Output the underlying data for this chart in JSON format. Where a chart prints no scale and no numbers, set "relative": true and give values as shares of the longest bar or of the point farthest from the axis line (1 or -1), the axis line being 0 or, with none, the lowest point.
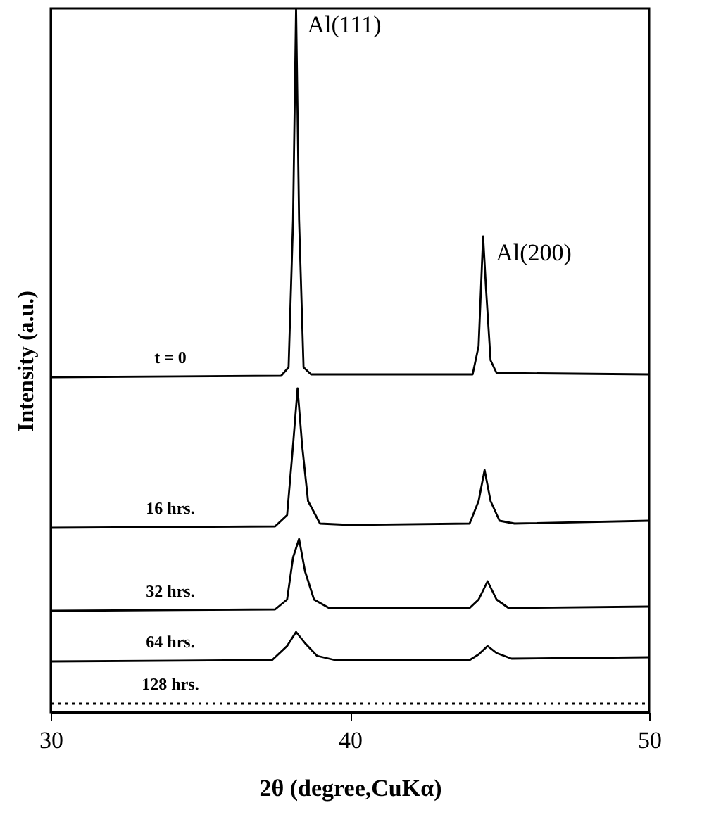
{
  "chart_data": {
    "type": "line",
    "relative": true,
    "xlabel": "2θ (degree,CuKα)",
    "ylabel": "Intensity (a.u.)",
    "xlim": [
      30,
      50
    ],
    "xticks": [
      30,
      40,
      50
    ],
    "grid": false,
    "marker": "none",
    "annotations": [
      {
        "text": "Al(111)",
        "x": 38.2,
        "y": 1.0
      },
      {
        "text": "Al(200)",
        "x": 44.5,
        "y": 0.676
      }
    ],
    "series": [
      {
        "name": "t = 0",
        "color": "#000000",
        "line_style": "solid",
        "x": [
          30,
          37.7,
          37.95,
          38.1,
          38.2,
          38.3,
          38.45,
          38.7,
          44.1,
          44.3,
          44.45,
          44.55,
          44.7,
          44.9,
          50
        ],
        "values": [
          0.476,
          0.478,
          0.49,
          0.7,
          1.0,
          0.7,
          0.49,
          0.48,
          0.48,
          0.52,
          0.676,
          0.6,
          0.5,
          0.482,
          0.48
        ]
      },
      {
        "name": "16 hrs.",
        "color": "#000000",
        "line_style": "solid",
        "x": [
          30,
          37.5,
          37.9,
          38.1,
          38.25,
          38.4,
          38.6,
          39,
          40,
          44,
          44.3,
          44.5,
          44.7,
          45,
          45.5,
          50
        ],
        "values": [
          0.262,
          0.264,
          0.28,
          0.38,
          0.46,
          0.38,
          0.3,
          0.268,
          0.266,
          0.268,
          0.3,
          0.344,
          0.3,
          0.272,
          0.268,
          0.272
        ]
      },
      {
        "name": "32 hrs.",
        "color": "#000000",
        "line_style": "solid",
        "x": [
          30,
          37.5,
          37.9,
          38.1,
          38.3,
          38.5,
          38.8,
          39.3,
          44,
          44.3,
          44.6,
          44.9,
          45.3,
          50
        ],
        "values": [
          0.144,
          0.146,
          0.16,
          0.22,
          0.246,
          0.2,
          0.16,
          0.148,
          0.148,
          0.16,
          0.186,
          0.16,
          0.148,
          0.15
        ]
      },
      {
        "name": "64 hrs.",
        "color": "#000000",
        "line_style": "solid",
        "x": [
          30,
          37.4,
          37.9,
          38.2,
          38.5,
          38.9,
          39.5,
          44,
          44.3,
          44.6,
          44.9,
          45.4,
          50
        ],
        "values": [
          0.072,
          0.074,
          0.094,
          0.114,
          0.098,
          0.08,
          0.074,
          0.074,
          0.082,
          0.094,
          0.084,
          0.076,
          0.078
        ]
      },
      {
        "name": "128 hrs.",
        "color": "#000000",
        "line_style": "dotted",
        "x": [
          30,
          50
        ],
        "values": [
          0.012,
          0.012
        ]
      }
    ]
  }
}
